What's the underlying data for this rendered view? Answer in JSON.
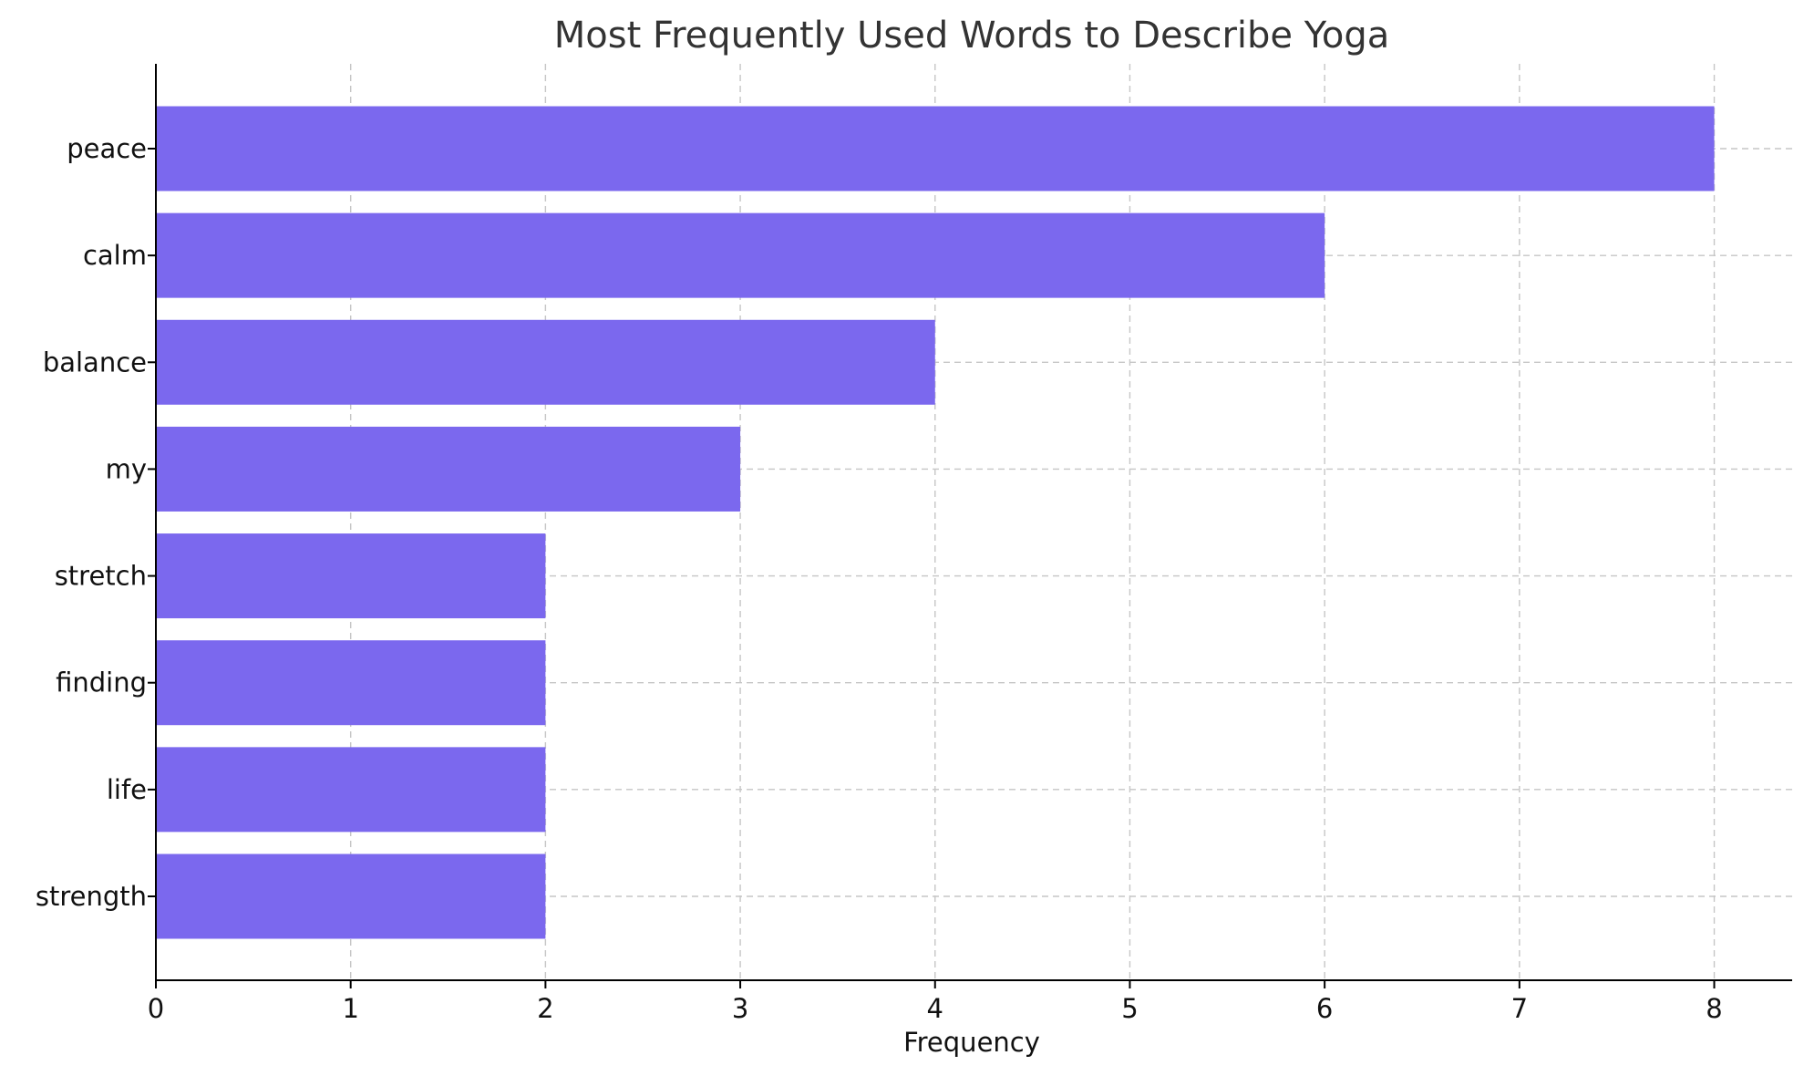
{
  "chart_data": {
    "type": "bar",
    "orientation": "horizontal",
    "title": "Most Frequently Used Words to Describe Yoga",
    "xlabel": "Frequency",
    "ylabel": "",
    "categories": [
      "peace",
      "calm",
      "balance",
      "my",
      "stretch",
      "finding",
      "life",
      "strength"
    ],
    "values": [
      8,
      6,
      4,
      3,
      2,
      2,
      2,
      2
    ],
    "xlim": [
      0,
      8.4
    ],
    "xticks": [
      0,
      1,
      2,
      3,
      4,
      5,
      6,
      7,
      8
    ],
    "grid": true,
    "bar_color": "#7b68ee"
  }
}
